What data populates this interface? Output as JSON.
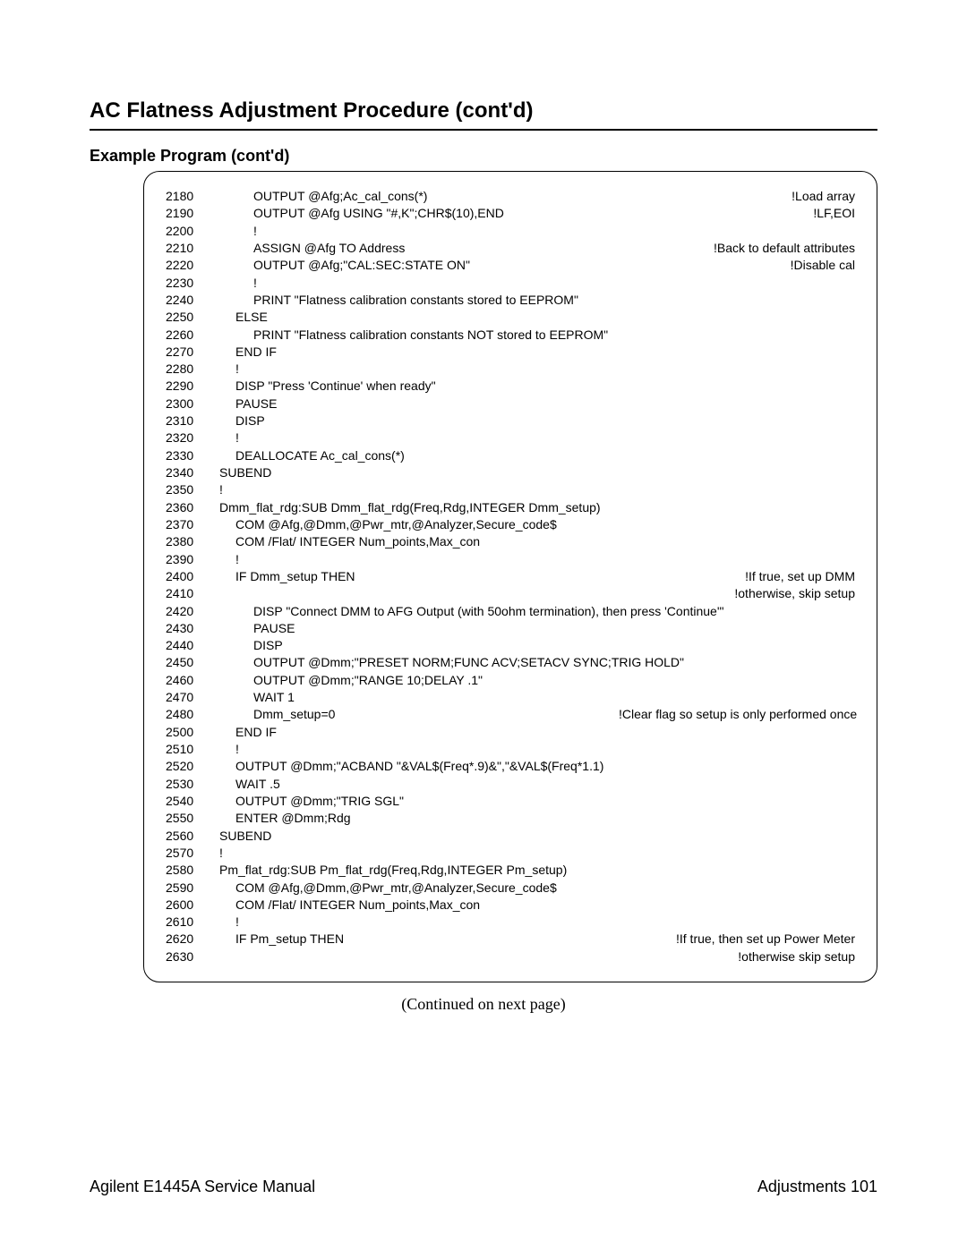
{
  "title": "AC Flatness Adjustment Procedure (cont'd)",
  "subtitle": "Example Program (cont'd)",
  "continued": "(Continued on next page)",
  "footer_left": "Agilent E1445A Service Manual",
  "footer_right_label": "Adjustments",
  "footer_right_page": "101",
  "lines": [
    {
      "n": "2180",
      "indent": 3,
      "code": "OUTPUT @Afg;Ac_cal_cons(*)",
      "cmt": "!Load array"
    },
    {
      "n": "2190",
      "indent": 3,
      "code": "OUTPUT @Afg USING \"#,K\";CHR$(10),END",
      "cmt": "!LF,EOI"
    },
    {
      "n": "2200",
      "indent": 3,
      "code": "!",
      "cmt": ""
    },
    {
      "n": "2210",
      "indent": 3,
      "code": "ASSIGN @Afg TO Address",
      "cmt": "!Back to default attributes"
    },
    {
      "n": "2220",
      "indent": 3,
      "code": "OUTPUT @Afg;\"CAL:SEC:STATE ON\"",
      "cmt": "!Disable cal"
    },
    {
      "n": "2230",
      "indent": 3,
      "code": "!",
      "cmt": ""
    },
    {
      "n": "2240",
      "indent": 3,
      "code": "PRINT \"Flatness calibration constants stored to EEPROM\"",
      "cmt": ""
    },
    {
      "n": "2250",
      "indent": 2,
      "code": "ELSE",
      "cmt": ""
    },
    {
      "n": "2260",
      "indent": 3,
      "code": "PRINT \"Flatness calibration constants NOT stored to EEPROM\"",
      "cmt": ""
    },
    {
      "n": "2270",
      "indent": 2,
      "code": "END IF",
      "cmt": ""
    },
    {
      "n": "2280",
      "indent": 2,
      "code": "!",
      "cmt": ""
    },
    {
      "n": "2290",
      "indent": 2,
      "code": "DISP \"Press 'Continue' when ready\"",
      "cmt": ""
    },
    {
      "n": "2300",
      "indent": 2,
      "code": "PAUSE",
      "cmt": ""
    },
    {
      "n": "2310",
      "indent": 2,
      "code": "DISP",
      "cmt": ""
    },
    {
      "n": "2320",
      "indent": 2,
      "code": "!",
      "cmt": ""
    },
    {
      "n": "2330",
      "indent": 2,
      "code": "DEALLOCATE Ac_cal_cons(*)",
      "cmt": ""
    },
    {
      "n": "2340",
      "indent": 1,
      "code": "SUBEND",
      "cmt": ""
    },
    {
      "n": "2350",
      "indent": 1,
      "code": "!",
      "cmt": ""
    },
    {
      "n": "2360",
      "indent": 1,
      "code": "Dmm_flat_rdg:SUB Dmm_flat_rdg(Freq,Rdg,INTEGER Dmm_setup)",
      "cmt": ""
    },
    {
      "n": "2370",
      "indent": 2,
      "code": "COM @Afg,@Dmm,@Pwr_mtr,@Analyzer,Secure_code$",
      "cmt": ""
    },
    {
      "n": "2380",
      "indent": 2,
      "code": "COM /Flat/ INTEGER Num_points,Max_con",
      "cmt": ""
    },
    {
      "n": "2390",
      "indent": 2,
      "code": "!",
      "cmt": ""
    },
    {
      "n": "2400",
      "indent": 2,
      "code": "IF Dmm_setup THEN",
      "cmt": "!If true, set up DMM"
    },
    {
      "n": "2410",
      "indent": 2,
      "code": "",
      "cmt": "!otherwise, skip setup"
    },
    {
      "n": "2420",
      "indent": 3,
      "code": "DISP \"Connect DMM to AFG Output (with 50ohm termination), then press 'Continue'\"",
      "cmt": ""
    },
    {
      "n": "2430",
      "indent": 3,
      "code": "PAUSE",
      "cmt": ""
    },
    {
      "n": "2440",
      "indent": 3,
      "code": "DISP",
      "cmt": ""
    },
    {
      "n": "2450",
      "indent": 3,
      "code": "OUTPUT @Dmm;\"PRESET NORM;FUNC ACV;SETACV SYNC;TRIG HOLD\"",
      "cmt": ""
    },
    {
      "n": "2460",
      "indent": 3,
      "code": "OUTPUT @Dmm;\"RANGE 10;DELAY .1\"",
      "cmt": ""
    },
    {
      "n": "2470",
      "indent": 3,
      "code": "WAIT 1",
      "cmt": ""
    },
    {
      "n": "2480",
      "indent": 3,
      "code": "Dmm_setup=0",
      "cmt": "!Clear flag so setup is only performed once"
    },
    {
      "n": "2500",
      "indent": 2,
      "code": "END IF",
      "cmt": ""
    },
    {
      "n": "2510",
      "indent": 2,
      "code": "!",
      "cmt": ""
    },
    {
      "n": "2520",
      "indent": 2,
      "code": "OUTPUT @Dmm;\"ACBAND \"&VAL$(Freq*.9)&\",\"&VAL$(Freq*1.1)",
      "cmt": ""
    },
    {
      "n": "2530",
      "indent": 2,
      "code": "WAIT .5",
      "cmt": ""
    },
    {
      "n": "2540",
      "indent": 2,
      "code": "OUTPUT @Dmm;\"TRIG SGL\"",
      "cmt": ""
    },
    {
      "n": "2550",
      "indent": 2,
      "code": "ENTER @Dmm;Rdg",
      "cmt": ""
    },
    {
      "n": "2560",
      "indent": 1,
      "code": "SUBEND",
      "cmt": ""
    },
    {
      "n": "2570",
      "indent": 1,
      "code": "!",
      "cmt": ""
    },
    {
      "n": "2580",
      "indent": 1,
      "code": "Pm_flat_rdg:SUB Pm_flat_rdg(Freq,Rdg,INTEGER Pm_setup)",
      "cmt": ""
    },
    {
      "n": "2590",
      "indent": 2,
      "code": "COM @Afg,@Dmm,@Pwr_mtr,@Analyzer,Secure_code$",
      "cmt": ""
    },
    {
      "n": "2600",
      "indent": 2,
      "code": "COM /Flat/ INTEGER Num_points,Max_con",
      "cmt": ""
    },
    {
      "n": "2610",
      "indent": 2,
      "code": "!",
      "cmt": ""
    },
    {
      "n": "2620",
      "indent": 2,
      "code": "IF Pm_setup THEN",
      "cmt": "!If true, then set up Power Meter"
    },
    {
      "n": "2630",
      "indent": 2,
      "code": "",
      "cmt": "!otherwise skip setup"
    }
  ],
  "code_col_width": 400,
  "colors": {
    "text": "#000000",
    "background": "#ffffff",
    "rule": "#000000",
    "border": "#000000"
  }
}
